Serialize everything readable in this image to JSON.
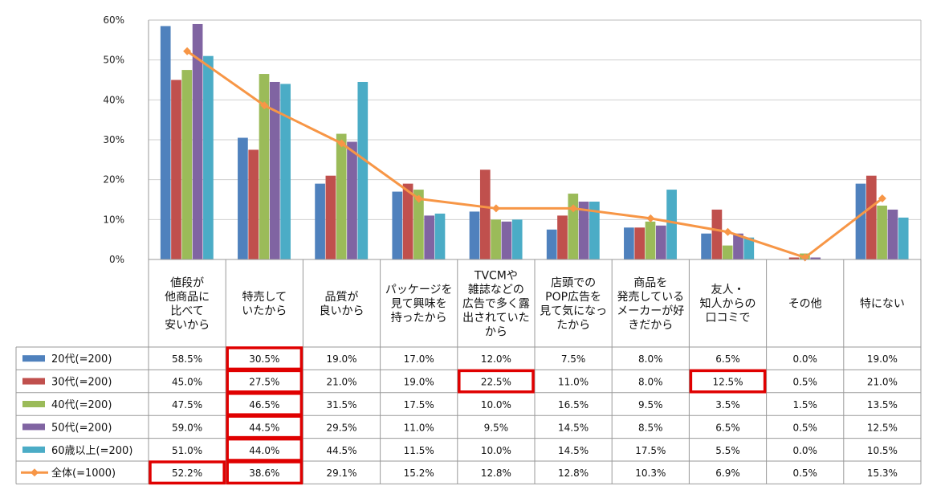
{
  "chart_data": {
    "type": "bar",
    "title": "",
    "xlabel": "",
    "ylabel": "",
    "ylim": [
      0,
      60
    ],
    "y_ticks": [
      "0%",
      "10%",
      "20%",
      "30%",
      "40%",
      "50%",
      "60%"
    ],
    "categories": [
      [
        "値段が",
        "他商品に",
        "比べて",
        "安いから"
      ],
      [
        "特売して",
        "いたから"
      ],
      [
        "品質が",
        "良いから"
      ],
      [
        "パッケージを",
        "見て興味を",
        "持ったから"
      ],
      [
        "TVCMや",
        "雑誌などの",
        "広告で多く露",
        "出されていた",
        "から"
      ],
      [
        "店頭での",
        "POP広告を",
        "見て気になっ",
        "たから"
      ],
      [
        "商品を",
        "発売している",
        "メーカーが好",
        "きだから"
      ],
      [
        "友人・",
        "知人からの",
        "口コミで"
      ],
      [
        "その他"
      ],
      [
        "特にない"
      ]
    ],
    "series": [
      {
        "name": "20代(=200)",
        "kind": "bar",
        "color": "#4F81BD",
        "values": [
          58.5,
          30.5,
          19.0,
          17.0,
          12.0,
          7.5,
          8.0,
          6.5,
          0.0,
          19.0
        ],
        "labels": [
          "58.5%",
          "30.5%",
          "19.0%",
          "17.0%",
          "12.0%",
          "7.5%",
          "8.0%",
          "6.5%",
          "0.0%",
          "19.0%"
        ]
      },
      {
        "name": "30代(=200)",
        "kind": "bar",
        "color": "#C0504D",
        "values": [
          45.0,
          27.5,
          21.0,
          19.0,
          22.5,
          11.0,
          8.0,
          12.5,
          0.5,
          21.0
        ],
        "labels": [
          "45.0%",
          "27.5%",
          "21.0%",
          "19.0%",
          "22.5%",
          "11.0%",
          "8.0%",
          "12.5%",
          "0.5%",
          "21.0%"
        ]
      },
      {
        "name": "40代(=200)",
        "kind": "bar",
        "color": "#9BBB59",
        "values": [
          47.5,
          46.5,
          31.5,
          17.5,
          10.0,
          16.5,
          9.5,
          3.5,
          1.5,
          13.5
        ],
        "labels": [
          "47.5%",
          "46.5%",
          "31.5%",
          "17.5%",
          "10.0%",
          "16.5%",
          "9.5%",
          "3.5%",
          "1.5%",
          "13.5%"
        ]
      },
      {
        "name": "50代(=200)",
        "kind": "bar",
        "color": "#8064A2",
        "values": [
          59.0,
          44.5,
          29.5,
          11.0,
          9.5,
          14.5,
          8.5,
          6.5,
          0.5,
          12.5
        ],
        "labels": [
          "59.0%",
          "44.5%",
          "29.5%",
          "11.0%",
          "9.5%",
          "14.5%",
          "8.5%",
          "6.5%",
          "0.5%",
          "12.5%"
        ]
      },
      {
        "name": "60歳以上(=200)",
        "kind": "bar",
        "color": "#4BACC6",
        "values": [
          51.0,
          44.0,
          44.5,
          11.5,
          10.0,
          14.5,
          17.5,
          5.5,
          0.0,
          10.5
        ],
        "labels": [
          "51.0%",
          "44.0%",
          "44.5%",
          "11.5%",
          "10.0%",
          "14.5%",
          "17.5%",
          "5.5%",
          "0.0%",
          "10.5%"
        ]
      },
      {
        "name": "全体(=1000)",
        "kind": "line",
        "color": "#F79646",
        "values": [
          52.2,
          38.6,
          29.1,
          15.2,
          12.8,
          12.8,
          10.3,
          6.9,
          0.5,
          15.3
        ],
        "labels": [
          "52.2%",
          "38.6%",
          "29.1%",
          "15.2%",
          "12.8%",
          "12.8%",
          "10.3%",
          "6.9%",
          "0.5%",
          "15.3%"
        ]
      }
    ],
    "highlights": [
      {
        "series": 0,
        "category": 1
      },
      {
        "series": 1,
        "category": 1
      },
      {
        "series": 2,
        "category": 1
      },
      {
        "series": 3,
        "category": 1
      },
      {
        "series": 4,
        "category": 1
      },
      {
        "series": 5,
        "category": 1
      },
      {
        "series": 5,
        "category": 0
      },
      {
        "series": 1,
        "category": 4
      },
      {
        "series": 1,
        "category": 7
      }
    ],
    "highlight_color": "#E00000"
  }
}
